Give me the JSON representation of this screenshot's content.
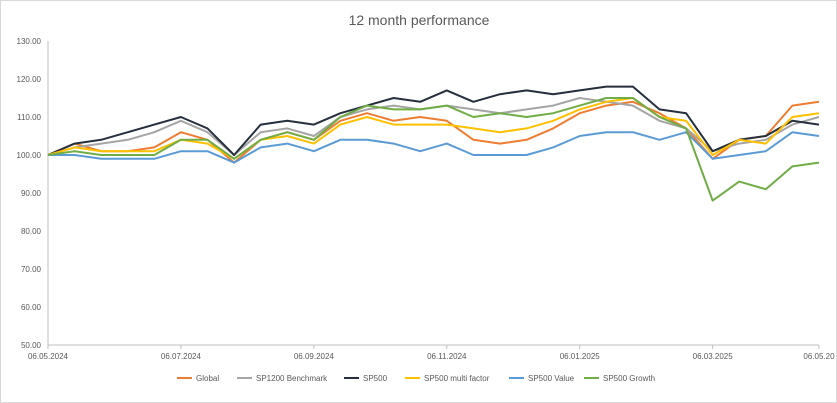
{
  "chart_data": {
    "type": "line",
    "title": "12 month performance",
    "xlabel": "",
    "ylabel": "",
    "ylim": [
      50,
      130
    ],
    "yticks": [
      "50.00",
      "60.00",
      "70.00",
      "80.00",
      "90.00",
      "100.00",
      "110.00",
      "120.00",
      "130.00"
    ],
    "xticks": [
      "06.05.2024",
      "06.07.2024",
      "06.09.2024",
      "06.11.2024",
      "06.01.2025",
      "06.03.2025",
      "06.05.20"
    ],
    "grid": "none",
    "legend_position": "bottom",
    "x": [
      "06.05.2024",
      "20.05.2024",
      "03.06.2024",
      "17.06.2024",
      "01.07.2024",
      "15.07.2024",
      "29.07.2024",
      "05.08.2024",
      "19.08.2024",
      "02.09.2024",
      "16.09.2024",
      "30.09.2024",
      "14.10.2024",
      "28.10.2024",
      "11.11.2024",
      "25.11.2024",
      "09.12.2024",
      "23.12.2024",
      "06.01.2025",
      "20.01.2025",
      "03.02.2025",
      "17.02.2025",
      "03.03.2025",
      "17.03.2025",
      "31.03.2025",
      "07.04.2025",
      "14.04.2025",
      "21.04.2025",
      "28.04.2025",
      "06.05.2025"
    ],
    "series": [
      {
        "name": "Global",
        "color": "#ed7d31",
        "values": [
          100,
          103,
          101,
          101,
          102,
          106,
          104,
          98,
          104,
          106,
          104,
          109,
          111,
          109,
          110,
          109,
          104,
          103,
          104,
          107,
          111,
          113,
          114,
          111,
          107,
          99,
          104,
          105,
          113,
          114
        ]
      },
      {
        "name": "SP1200 Benchmark",
        "color": "#a5a5a5",
        "values": [
          100,
          102,
          103,
          104,
          106,
          109,
          106,
          100,
          106,
          107,
          105,
          110,
          112,
          113,
          112,
          113,
          112,
          111,
          112,
          113,
          115,
          114,
          113,
          109,
          107,
          101,
          103,
          104,
          108,
          110
        ]
      },
      {
        "name": "SP500",
        "color": "#262f3d",
        "values": [
          100,
          103,
          104,
          106,
          108,
          110,
          107,
          100,
          108,
          109,
          108,
          111,
          113,
          115,
          114,
          117,
          114,
          116,
          117,
          116,
          117,
          118,
          118,
          112,
          111,
          101,
          104,
          105,
          109,
          108
        ]
      },
      {
        "name": "SP500 multi factor",
        "color": "#ffc000",
        "values": [
          100,
          102,
          101,
          101,
          101,
          104,
          103,
          99,
          104,
          105,
          103,
          108,
          110,
          108,
          108,
          108,
          107,
          106,
          107,
          109,
          112,
          114,
          115,
          110,
          109,
          100,
          104,
          103,
          110,
          111
        ]
      },
      {
        "name": "SP500 Value",
        "color": "#5b9bd5",
        "values": [
          100,
          100,
          99,
          99,
          99,
          101,
          101,
          98,
          102,
          103,
          101,
          104,
          104,
          103,
          101,
          103,
          100,
          100,
          100,
          102,
          105,
          106,
          106,
          104,
          106,
          99,
          100,
          101,
          106,
          105
        ]
      },
      {
        "name": "SP500 Growth",
        "color": "#70ad47",
        "values": [
          100,
          101,
          100,
          100,
          100,
          104,
          104,
          99,
          104,
          106,
          104,
          110,
          113,
          112,
          112,
          113,
          110,
          111,
          110,
          111,
          113,
          115,
          115,
          110,
          107,
          88,
          93,
          91,
          97,
          98
        ]
      }
    ]
  }
}
